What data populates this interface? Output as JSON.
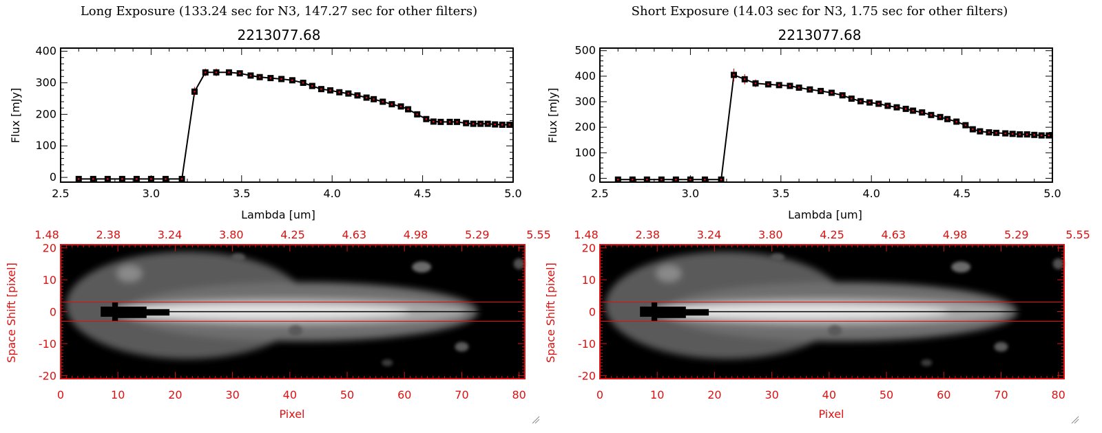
{
  "colors": {
    "axis": "#000000",
    "accent": "#dd1111",
    "errorbar": "#dd1111",
    "line": "#000000"
  },
  "chart_data": [
    {
      "type": "line",
      "title": "Long Exposure (133.24 sec for N3, 147.27 sec for other filters)",
      "subtitle": "2213077.68",
      "xlabel": "Lambda [um]",
      "ylabel": "Flux [mJy]",
      "xlim": [
        2.5,
        5.0
      ],
      "ylim": [
        -15,
        410
      ],
      "xticks": [
        "2.5",
        "3.0",
        "3.5",
        "4.0",
        "4.5",
        "5.0"
      ],
      "yticks": [
        "0",
        "100",
        "200",
        "300",
        "400"
      ],
      "series": [
        {
          "x": [
            2.6,
            2.68,
            2.76,
            2.84,
            2.92,
            3.0,
            3.08,
            3.17,
            3.24,
            3.3,
            3.36,
            3.43,
            3.49,
            3.55,
            3.6,
            3.66,
            3.72,
            3.78,
            3.84,
            3.89,
            3.94,
            3.99,
            4.04,
            4.09,
            4.14,
            4.19,
            4.23,
            4.28,
            4.33,
            4.38,
            4.42,
            4.47,
            4.52,
            4.56,
            4.6,
            4.65,
            4.69,
            4.74,
            4.78,
            4.82,
            4.86,
            4.9,
            4.94,
            4.98
          ],
          "y": [
            -5,
            -5,
            -5,
            -5,
            -5,
            -5,
            -5,
            -5,
            272,
            333,
            333,
            333,
            330,
            323,
            318,
            315,
            312,
            308,
            300,
            290,
            280,
            276,
            270,
            266,
            260,
            253,
            248,
            240,
            232,
            225,
            216,
            200,
            185,
            177,
            176,
            176,
            176,
            172,
            170,
            170,
            170,
            168,
            167,
            167
          ],
          "yerr": [
            3,
            3,
            3,
            3,
            3,
            3,
            3,
            3,
            15,
            12,
            12,
            7,
            5,
            5,
            5,
            5,
            5,
            5,
            5,
            5,
            5,
            5,
            5,
            5,
            5,
            5,
            5,
            5,
            5,
            5,
            5,
            5,
            5,
            5,
            5,
            5,
            5,
            5,
            5,
            5,
            5,
            5,
            5,
            5
          ]
        }
      ]
    },
    {
      "type": "line",
      "title": "Short Exposure (14.03 sec for N3, 1.75 sec for other filters)",
      "subtitle": "2213077.68",
      "xlabel": "Lambda [um]",
      "ylabel": "Flux [mJy]",
      "xlim": [
        2.5,
        5.0
      ],
      "ylim": [
        -15,
        510
      ],
      "xticks": [
        "2.5",
        "3.0",
        "3.5",
        "4.0",
        "4.5",
        "5.0"
      ],
      "yticks": [
        "0",
        "100",
        "200",
        "300",
        "400",
        "500"
      ],
      "series": [
        {
          "x": [
            2.6,
            2.68,
            2.76,
            2.84,
            2.92,
            3.0,
            3.08,
            3.17,
            3.24,
            3.3,
            3.36,
            3.43,
            3.49,
            3.55,
            3.6,
            3.66,
            3.72,
            3.78,
            3.84,
            3.89,
            3.94,
            3.99,
            4.04,
            4.09,
            4.14,
            4.19,
            4.23,
            4.28,
            4.33,
            4.38,
            4.42,
            4.47,
            4.52,
            4.56,
            4.6,
            4.65,
            4.69,
            4.74,
            4.78,
            4.82,
            4.86,
            4.9,
            4.94,
            4.98
          ],
          "y": [
            -5,
            -5,
            -5,
            -5,
            -5,
            -5,
            -5,
            -5,
            405,
            388,
            372,
            368,
            365,
            362,
            355,
            348,
            342,
            335,
            325,
            312,
            302,
            297,
            292,
            284,
            278,
            272,
            265,
            258,
            248,
            240,
            232,
            222,
            208,
            192,
            184,
            180,
            178,
            176,
            174,
            172,
            172,
            170,
            168,
            168
          ],
          "yerr": [
            3,
            3,
            3,
            3,
            3,
            3,
            3,
            3,
            25,
            20,
            15,
            8,
            6,
            6,
            6,
            6,
            6,
            6,
            6,
            6,
            6,
            6,
            6,
            6,
            6,
            6,
            6,
            6,
            6,
            6,
            6,
            6,
            6,
            6,
            6,
            6,
            6,
            6,
            6,
            6,
            6,
            6,
            6,
            6
          ]
        }
      ]
    },
    {
      "type": "heatmap",
      "xlabel": "Pixel",
      "ylabel": "Space Shift [pixel]",
      "xlim": [
        0,
        81
      ],
      "ylim": [
        -21,
        21
      ],
      "xticks": [
        "0",
        "10",
        "20",
        "30",
        "40",
        "50",
        "60",
        "70",
        "80"
      ],
      "yticks": [
        "-20",
        "-10",
        "0",
        "10",
        "20"
      ],
      "top_xticks": [
        "1.48",
        "2.38",
        "3.24",
        "3.80",
        "4.25",
        "4.63",
        "4.98",
        "5.29",
        "5.55"
      ],
      "aperture_lines": [
        3,
        -3
      ]
    },
    {
      "type": "heatmap",
      "xlabel": "Pixel",
      "ylabel": "Space Shift [pixel]",
      "xlim": [
        0,
        81
      ],
      "ylim": [
        -21,
        21
      ],
      "xticks": [
        "0",
        "10",
        "20",
        "30",
        "40",
        "50",
        "60",
        "70",
        "80"
      ],
      "yticks": [
        "-20",
        "-10",
        "0",
        "10",
        "20"
      ],
      "top_xticks": [
        "1.48",
        "2.38",
        "3.24",
        "3.80",
        "4.25",
        "4.63",
        "4.98",
        "5.29",
        "5.55"
      ],
      "aperture_lines": [
        3,
        -3
      ]
    }
  ]
}
